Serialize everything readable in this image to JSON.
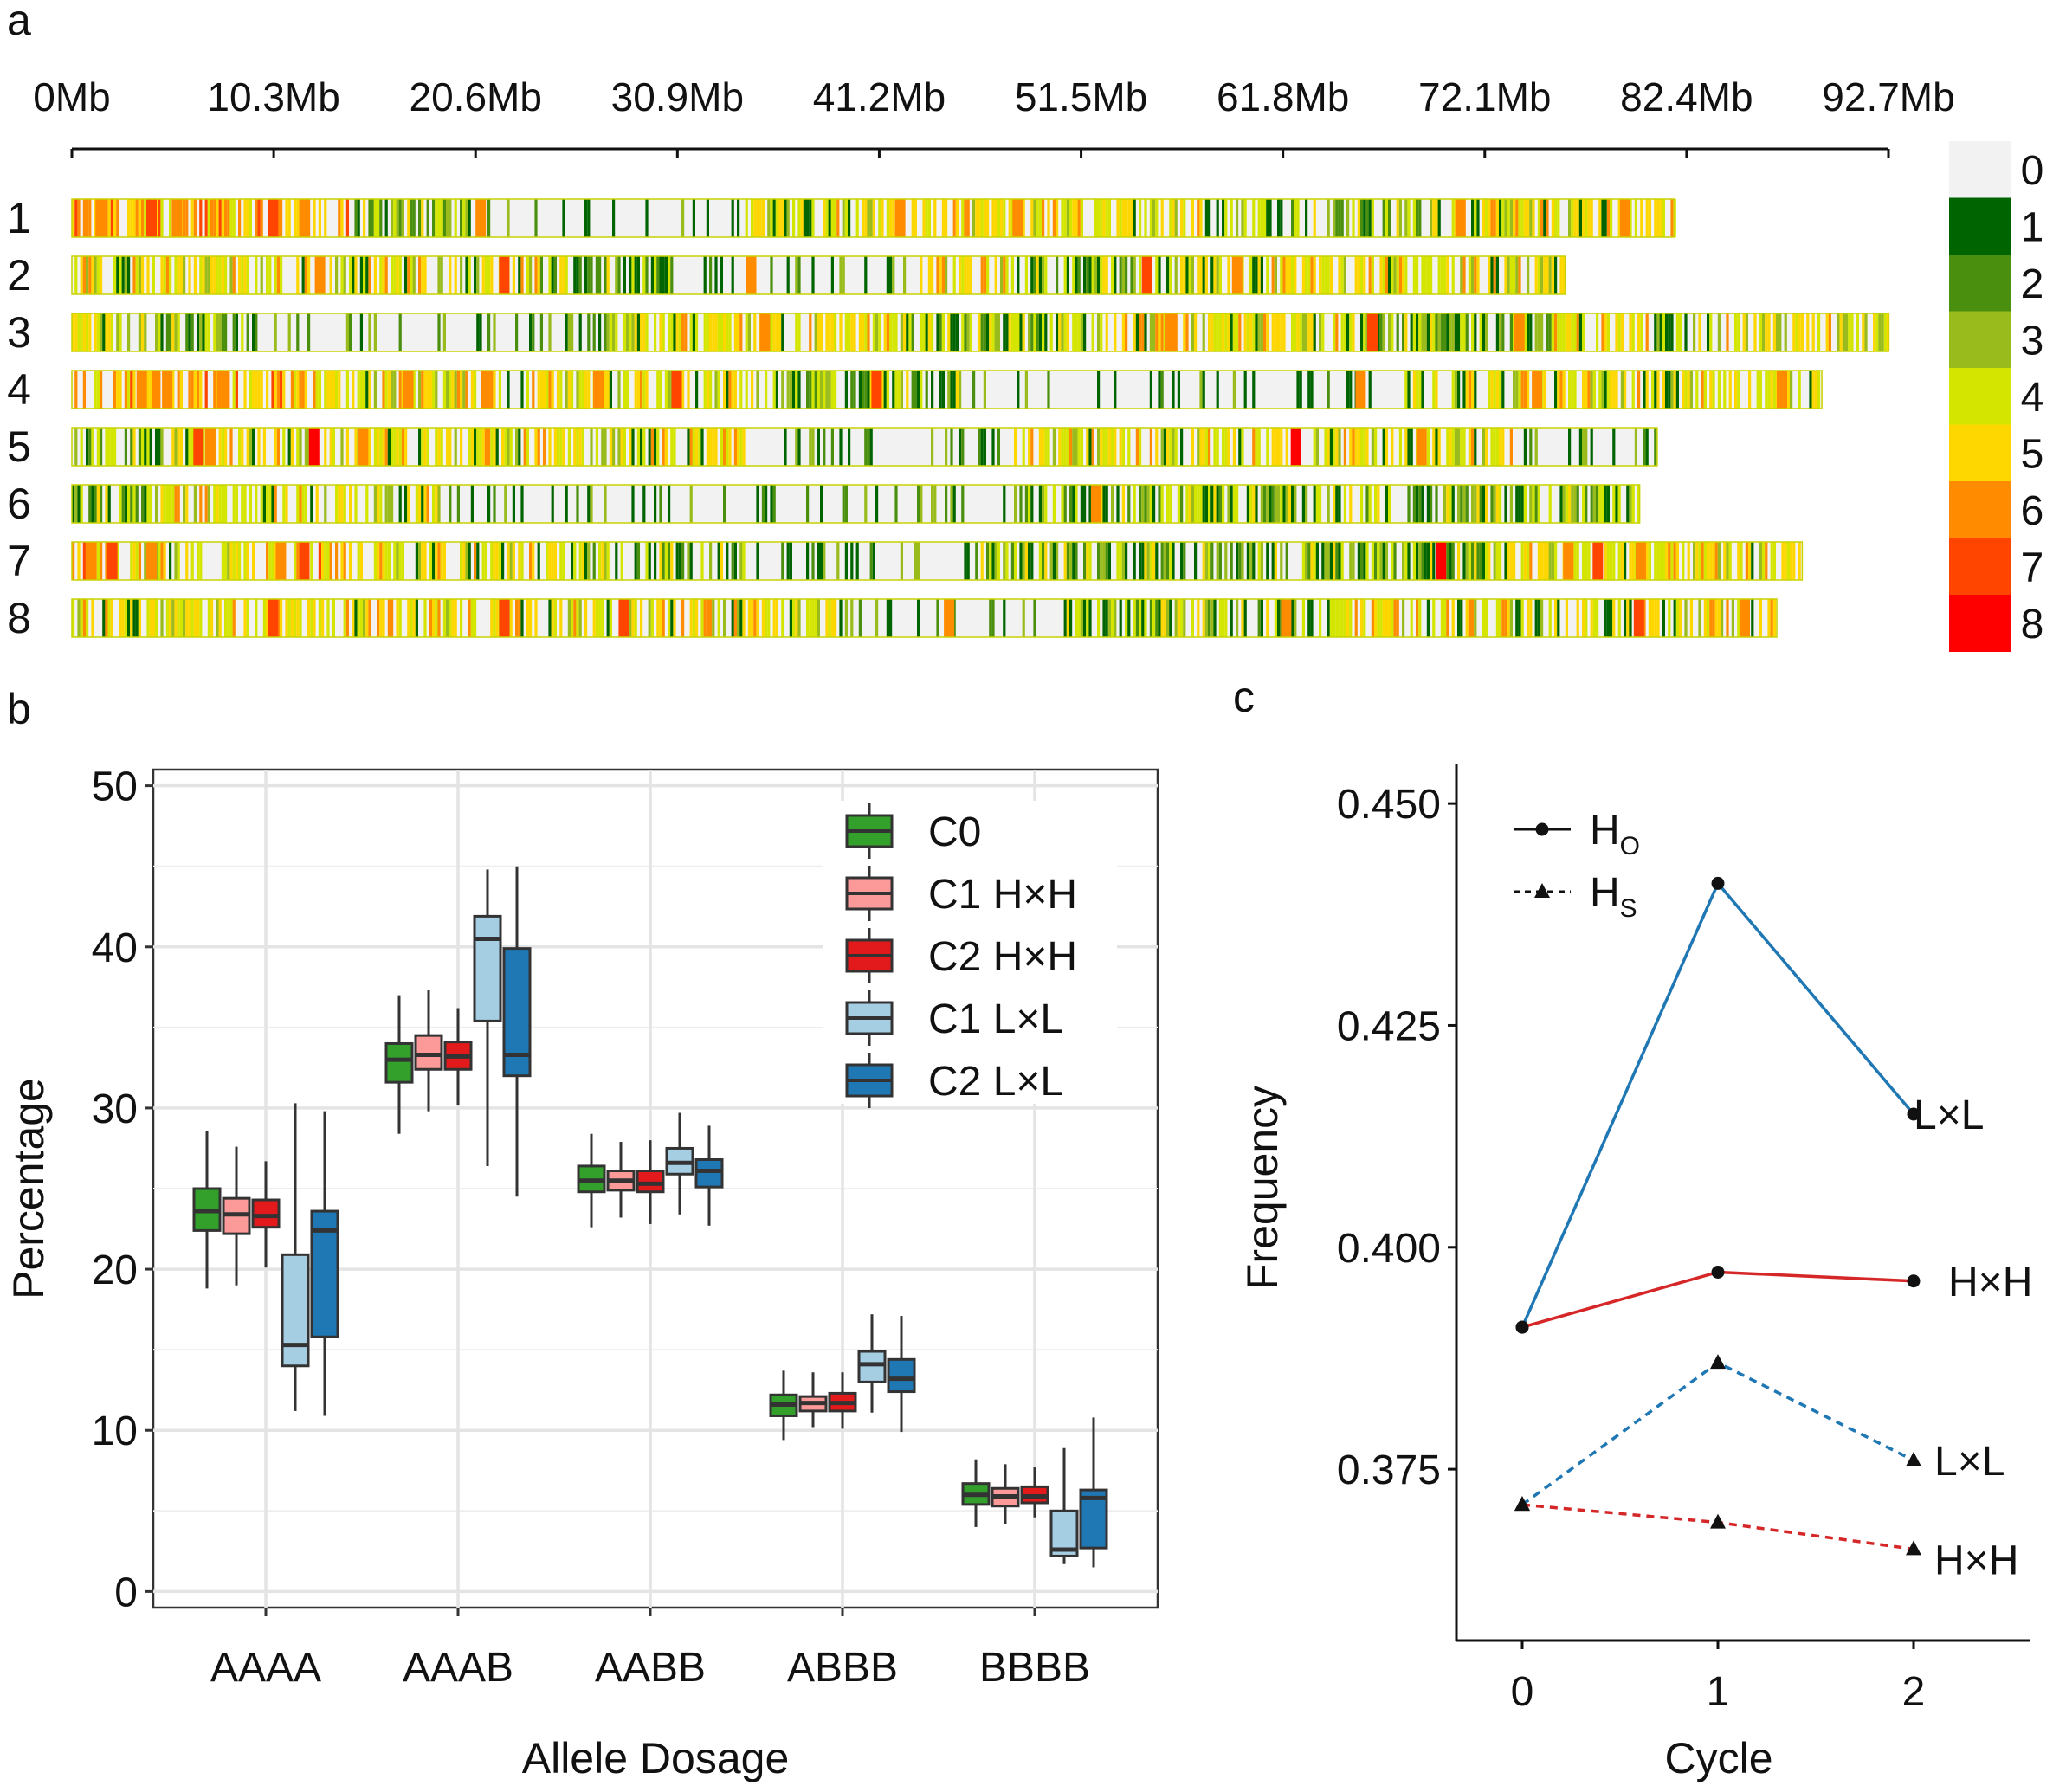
{
  "panels": {
    "a": {
      "letter": "a"
    },
    "b": {
      "letter": "b"
    },
    "c": {
      "letter": "c"
    }
  },
  "chart_data": [
    {
      "type": "heatmap",
      "panel": "a",
      "title": "",
      "x_ticks": [
        "0Mb",
        "10.3Mb",
        "20.6Mb",
        "30.9Mb",
        "41.2Mb",
        "51.5Mb",
        "61.8Mb",
        "72.1Mb",
        "82.4Mb",
        "92.7Mb"
      ],
      "x_range_mb": [
        0,
        92.7
      ],
      "chromosomes": [
        {
          "label": "1",
          "length_mb": 81.8,
          "warm": [
            [
              0,
              2.4,
              0.8
            ],
            [
              2.4,
              14.3,
              0.65
            ],
            [
              16.6,
              20.6,
              0.4
            ],
            [
              20.6,
              34.3,
              0.08
            ],
            [
              34.3,
              58.1,
              0.55
            ],
            [
              58.1,
              68.9,
              0.35
            ],
            [
              68.9,
              81.8,
              0.55
            ]
          ],
          "hot": [
            [
              1.2,
              6
            ],
            [
              3.8,
              7
            ],
            [
              5.1,
              6
            ],
            [
              10.0,
              7
            ],
            [
              11.6,
              6
            ],
            [
              20.6,
              6
            ],
            [
              42.0,
              6
            ],
            [
              48.0,
              6
            ],
            [
              70.6,
              6
            ],
            [
              79.0,
              6
            ]
          ]
        },
        {
          "label": "2",
          "length_mb": 76.2,
          "warm": [
            [
              0,
              9.5,
              0.55
            ],
            [
              9.5,
              23.8,
              0.45
            ],
            [
              23.8,
              30.6,
              0.4
            ],
            [
              30.6,
              42.9,
              0.1
            ],
            [
              42.9,
              48.2,
              0.55
            ],
            [
              48.2,
              56.6,
              0.35
            ],
            [
              56.6,
              76.2,
              0.5
            ]
          ],
          "hot": [
            [
              12.4,
              6
            ],
            [
              21.8,
              7
            ],
            [
              34.4,
              6
            ],
            [
              54.6,
              7
            ],
            [
              59.2,
              6
            ]
          ]
        },
        {
          "label": "3",
          "length_mb": 92.7,
          "warm": [
            [
              0,
              4.5,
              0.45
            ],
            [
              4.5,
              9.0,
              0.3
            ],
            [
              9.0,
              27.3,
              0.1
            ],
            [
              27.3,
              42.0,
              0.45
            ],
            [
              42.0,
              50.2,
              0.25
            ],
            [
              50.2,
              65.4,
              0.55
            ],
            [
              65.4,
              75.6,
              0.35
            ],
            [
              75.6,
              92.7,
              0.55
            ]
          ],
          "hot": [
            [
              35.1,
              6
            ],
            [
              55.8,
              6
            ],
            [
              66.1,
              7
            ],
            [
              73.6,
              6
            ]
          ]
        },
        {
          "label": "4",
          "length_mb": 89.3,
          "warm": [
            [
              0,
              12.5,
              0.8
            ],
            [
              12.5,
              28.8,
              0.55
            ],
            [
              28.8,
              35.0,
              0.45
            ],
            [
              35.0,
              45.2,
              0.3
            ],
            [
              45.2,
              67.9,
              0.15
            ],
            [
              67.9,
              89.3,
              0.5
            ]
          ],
          "hot": [
            [
              3.3,
              6
            ],
            [
              4.6,
              6
            ],
            [
              7.4,
              6
            ],
            [
              16.9,
              6
            ],
            [
              20.9,
              6
            ],
            [
              26.6,
              6
            ],
            [
              30.6,
              7
            ],
            [
              40.8,
              7
            ],
            [
              65.5,
              6
            ],
            [
              74.5,
              6
            ],
            [
              87.0,
              6
            ]
          ]
        },
        {
          "label": "5",
          "length_mb": 80.9,
          "warm": [
            [
              0,
              4.6,
              0.4
            ],
            [
              4.6,
              12.9,
              0.6
            ],
            [
              12.9,
              34.3,
              0.55
            ],
            [
              34.3,
              48.0,
              0.15
            ],
            [
              48.0,
              53.8,
              0.45
            ],
            [
              53.8,
              73.4,
              0.5
            ],
            [
              73.4,
              80.9,
              0.1
            ]
          ],
          "hot": [
            [
              6.2,
              7
            ],
            [
              6.8,
              6
            ],
            [
              12.1,
              8
            ],
            [
              14.6,
              6
            ],
            [
              62.2,
              8
            ],
            [
              68.6,
              6
            ]
          ]
        },
        {
          "label": "6",
          "length_mb": 80.0,
          "warm": [
            [
              0,
              4.6,
              0.4
            ],
            [
              4.6,
              18.8,
              0.5
            ],
            [
              18.8,
              24.8,
              0.15
            ],
            [
              24.8,
              48.0,
              0.05
            ],
            [
              48.0,
              65.4,
              0.3
            ],
            [
              65.4,
              72.2,
              0.35
            ],
            [
              72.2,
              80.0,
              0.35
            ]
          ],
          "hot": [
            [
              52.0,
              6
            ]
          ]
        },
        {
          "label": "7",
          "length_mb": 88.3,
          "warm": [
            [
              0,
              3.0,
              0.8
            ],
            [
              3.0,
              9.0,
              0.55
            ],
            [
              9.0,
              15.4,
              0.65
            ],
            [
              15.4,
              24.6,
              0.55
            ],
            [
              24.6,
              34.3,
              0.3
            ],
            [
              34.3,
              45.9,
              0.15
            ],
            [
              45.9,
              55.9,
              0.3
            ],
            [
              55.9,
              72.2,
              0.4
            ],
            [
              72.2,
              86.5,
              0.55
            ],
            [
              86.5,
              88.3,
              0.5
            ]
          ],
          "hot": [
            [
              0.7,
              6
            ],
            [
              1.8,
              7
            ],
            [
              3.8,
              6
            ],
            [
              10.4,
              6
            ],
            [
              11.6,
              7
            ],
            [
              69.6,
              8
            ],
            [
              76.1,
              6
            ],
            [
              77.6,
              7
            ],
            [
              79.8,
              6
            ]
          ]
        },
        {
          "label": "8",
          "length_mb": 87.0,
          "warm": [
            [
              0,
              8.0,
              0.55
            ],
            [
              8.0,
              24.0,
              0.55
            ],
            [
              24.0,
              38.9,
              0.5
            ],
            [
              38.9,
              50.3,
              0.2
            ],
            [
              50.3,
              64.1,
              0.4
            ],
            [
              64.1,
              78.2,
              0.55
            ],
            [
              78.2,
              87.0,
              0.6
            ]
          ],
          "hot": [
            [
              10.0,
              7
            ],
            [
              21.8,
              7
            ],
            [
              27.9,
              7
            ],
            [
              44.5,
              6
            ],
            [
              61.7,
              6
            ],
            [
              79.7,
              7
            ],
            [
              85.1,
              6
            ]
          ]
        }
      ],
      "legend": {
        "values": [
          "0",
          "1",
          "2",
          "3",
          "4",
          "5",
          "6",
          "7",
          "8"
        ],
        "colors": [
          "#f2f2f2",
          "#006400",
          "#4b8f0e",
          "#99bb1b",
          "#d4e600",
          "#ffd700",
          "#ff8c00",
          "#ff4500",
          "#ff0000"
        ]
      }
    },
    {
      "type": "box",
      "panel": "b",
      "xlabel": "Allele Dosage",
      "ylabel": "Percentage",
      "ylim": [
        -1,
        51
      ],
      "yticks": [
        0,
        10,
        20,
        30,
        40,
        50
      ],
      "categories": [
        "AAAA",
        "AAAB",
        "AABB",
        "ABBB",
        "BBBB"
      ],
      "series": [
        {
          "name": "C0",
          "color": "#33a02c",
          "boxes": [
            [
              18.8,
              22.4,
              23.6,
              25.0,
              28.6
            ],
            [
              28.4,
              31.6,
              33.0,
              34.0,
              37.0
            ],
            [
              22.6,
              24.8,
              25.5,
              26.4,
              28.4
            ],
            [
              9.4,
              10.9,
              11.6,
              12.2,
              13.7
            ],
            [
              4.0,
              5.4,
              6.0,
              6.7,
              8.2
            ]
          ]
        },
        {
          "name": "C1 H×H",
          "color": "#fb9a99",
          "boxes": [
            [
              19.0,
              22.2,
              23.4,
              24.4,
              27.6
            ],
            [
              29.8,
              32.4,
              33.3,
              34.5,
              37.3
            ],
            [
              23.2,
              24.9,
              25.5,
              26.1,
              27.9
            ],
            [
              10.2,
              11.2,
              11.7,
              12.1,
              13.6
            ],
            [
              4.2,
              5.3,
              5.9,
              6.4,
              7.9
            ]
          ]
        },
        {
          "name": "C2 H×H",
          "color": "#e31a1c",
          "boxes": [
            [
              20.1,
              22.6,
              23.3,
              24.3,
              26.7
            ],
            [
              30.2,
              32.4,
              33.2,
              34.1,
              36.2
            ],
            [
              22.8,
              24.8,
              25.3,
              26.1,
              28.0
            ],
            [
              10.1,
              11.2,
              11.7,
              12.3,
              13.6
            ],
            [
              4.6,
              5.5,
              5.9,
              6.5,
              7.7
            ]
          ]
        },
        {
          "name": "C1 L×L",
          "color": "#a6cee3",
          "boxes": [
            [
              11.2,
              14.0,
              15.3,
              20.9,
              30.3
            ],
            [
              26.4,
              35.4,
              40.5,
              41.9,
              44.8
            ],
            [
              23.4,
              25.9,
              26.6,
              27.5,
              29.7
            ],
            [
              11.1,
              13.0,
              14.1,
              14.9,
              17.2
            ],
            [
              1.7,
              2.2,
              2.6,
              5.0,
              8.9
            ]
          ]
        },
        {
          "name": "C2 L×L",
          "color": "#1f78b4",
          "boxes": [
            [
              10.9,
              15.8,
              22.4,
              23.6,
              29.8
            ],
            [
              24.5,
              32.0,
              33.3,
              39.9,
              45.0
            ],
            [
              22.7,
              25.1,
              26.1,
              26.8,
              28.9
            ],
            [
              9.9,
              12.4,
              13.2,
              14.4,
              17.1
            ],
            [
              1.5,
              2.7,
              5.8,
              6.3,
              10.8
            ]
          ]
        }
      ]
    },
    {
      "type": "line",
      "panel": "c",
      "xlabel": "Cycle",
      "ylabel": "Frequency",
      "x": [
        0,
        1,
        2
      ],
      "xticks": [
        "0",
        "1",
        "2"
      ],
      "ylim": [
        0.3557,
        0.4545
      ],
      "yticks": [
        0.375,
        0.4,
        0.425,
        0.45
      ],
      "ytick_labels": [
        "0.375",
        "0.400",
        "0.425",
        "0.450"
      ],
      "legend": [
        {
          "main": "H",
          "sub": "O",
          "marker": "circle",
          "dash": "solid"
        },
        {
          "main": "H",
          "sub": "S",
          "marker": "triangle",
          "dash": "dashed"
        }
      ],
      "series": [
        {
          "name": "HO L×L",
          "end_label": "L×L",
          "color": "#1f77b4",
          "marker": "circle",
          "dash": "solid",
          "values": [
            0.391,
            0.441,
            0.415
          ]
        },
        {
          "name": "HO H×H",
          "end_label": "H×H",
          "color": "#d62728",
          "marker": "circle",
          "dash": "solid",
          "values": [
            0.391,
            0.3972,
            0.3962
          ]
        },
        {
          "name": "HS L×L",
          "end_label": "L×L",
          "color": "#1f77b4",
          "marker": "triangle",
          "dash": "dashed",
          "values": [
            0.371,
            0.387,
            0.376
          ]
        },
        {
          "name": "HS H×H",
          "end_label": "H×H",
          "color": "#d62728",
          "marker": "triangle",
          "dash": "dashed",
          "values": [
            0.371,
            0.369,
            0.366
          ]
        }
      ]
    }
  ]
}
